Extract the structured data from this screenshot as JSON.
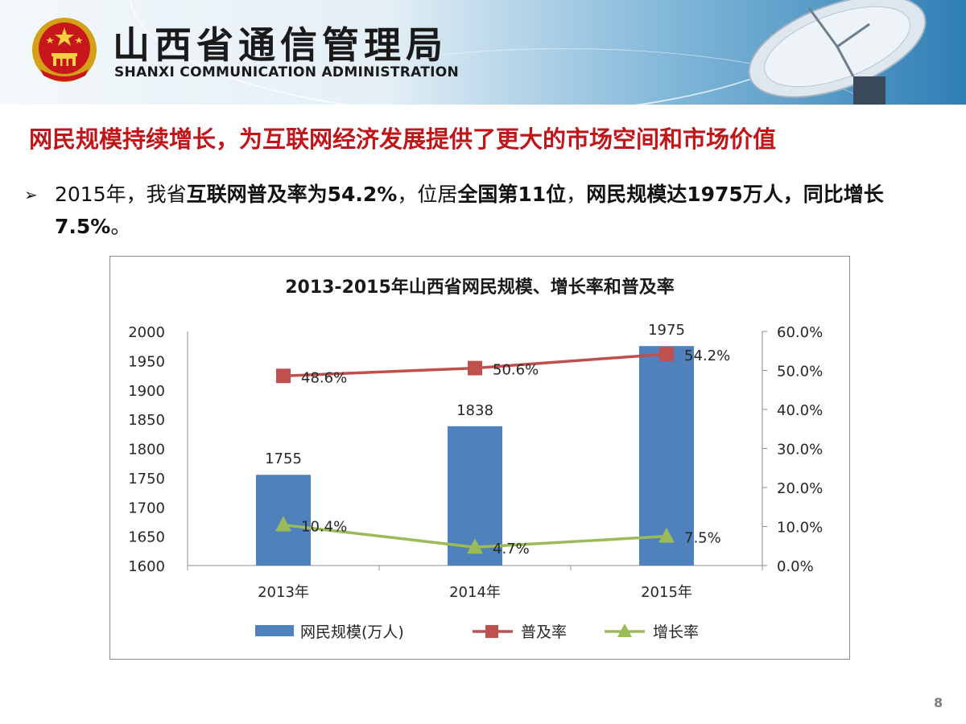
{
  "header": {
    "org_name_cn": "山西省通信管理局",
    "org_name_en": "SHANXI COMMUNICATION ADMINISTRATION"
  },
  "slide": {
    "headline": "网民规模持续增长，为互联网经济发展提供了更大的市场空间和市场价值",
    "bullet_marker": "➢",
    "bullet": {
      "p1": "2015年，我省",
      "b1": "互联网普及率为54.2%",
      "p2": "，位居",
      "b2": "全国第11位",
      "p3": "，",
      "b3": "网民规模达1975万人，同比增长7.5%",
      "p4": "。"
    },
    "page_number": "8"
  },
  "colors": {
    "bar": "#4f81bd",
    "penetration": "#c0504d",
    "growth": "#9bbb59",
    "headline": "#c0161a"
  },
  "chart_data": {
    "type": "bar+line",
    "title": "2013-2015年山西省网民规模、增长率和普及率",
    "categories": [
      "2013年",
      "2014年",
      "2015年"
    ],
    "series": [
      {
        "name": "网民规模(万人)",
        "kind": "bar",
        "axis": "left",
        "values": [
          1755,
          1838,
          1975
        ],
        "labels": [
          "1755",
          "1838",
          "1975"
        ]
      },
      {
        "name": "普及率",
        "kind": "line",
        "marker": "square",
        "axis": "right",
        "values": [
          48.6,
          50.6,
          54.2
        ],
        "labels": [
          "48.6%",
          "50.6%",
          "54.2%"
        ]
      },
      {
        "name": "增长率",
        "kind": "line",
        "marker": "triangle",
        "axis": "right",
        "values": [
          10.4,
          4.7,
          7.5
        ],
        "labels": [
          "10.4%",
          "4.7%",
          "7.5%"
        ]
      }
    ],
    "y_left": {
      "min": 1600,
      "max": 2000,
      "ticks": [
        "1600",
        "1650",
        "1700",
        "1750",
        "1800",
        "1850",
        "1900",
        "1950",
        "2000"
      ]
    },
    "y_right": {
      "min": 0,
      "max": 60,
      "ticks": [
        "0.0%",
        "10.0%",
        "20.0%",
        "30.0%",
        "40.0%",
        "50.0%",
        "60.0%"
      ]
    },
    "legend": "bottom",
    "grid": false
  }
}
